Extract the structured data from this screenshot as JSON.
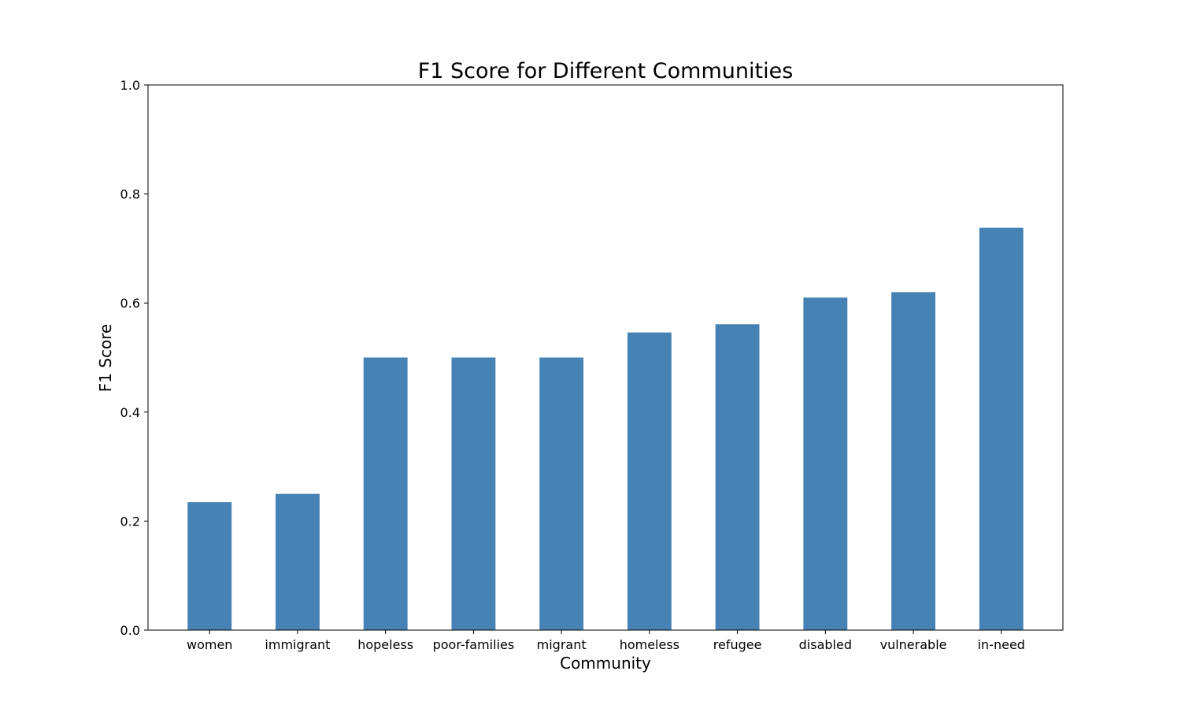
{
  "chart_data": {
    "type": "bar",
    "title": "F1 Score for Different Communities",
    "xlabel": "Community",
    "ylabel": "F1 Score",
    "categories": [
      "women",
      "immigrant",
      "hopeless",
      "poor-families",
      "migrant",
      "homeless",
      "refugee",
      "disabled",
      "vulnerable",
      "in-need"
    ],
    "values": [
      0.235,
      0.25,
      0.5,
      0.5,
      0.5,
      0.546,
      0.561,
      0.61,
      0.62,
      0.738
    ],
    "ylim": [
      0,
      1.0
    ],
    "yticks": [
      "0.0",
      "0.2",
      "0.4",
      "0.6",
      "0.8",
      "1.0"
    ],
    "ytick_values": [
      0,
      0.2,
      0.4,
      0.6,
      0.8,
      1.0
    ],
    "grid": false,
    "legend": "none",
    "bar_color": "#4682b4"
  }
}
